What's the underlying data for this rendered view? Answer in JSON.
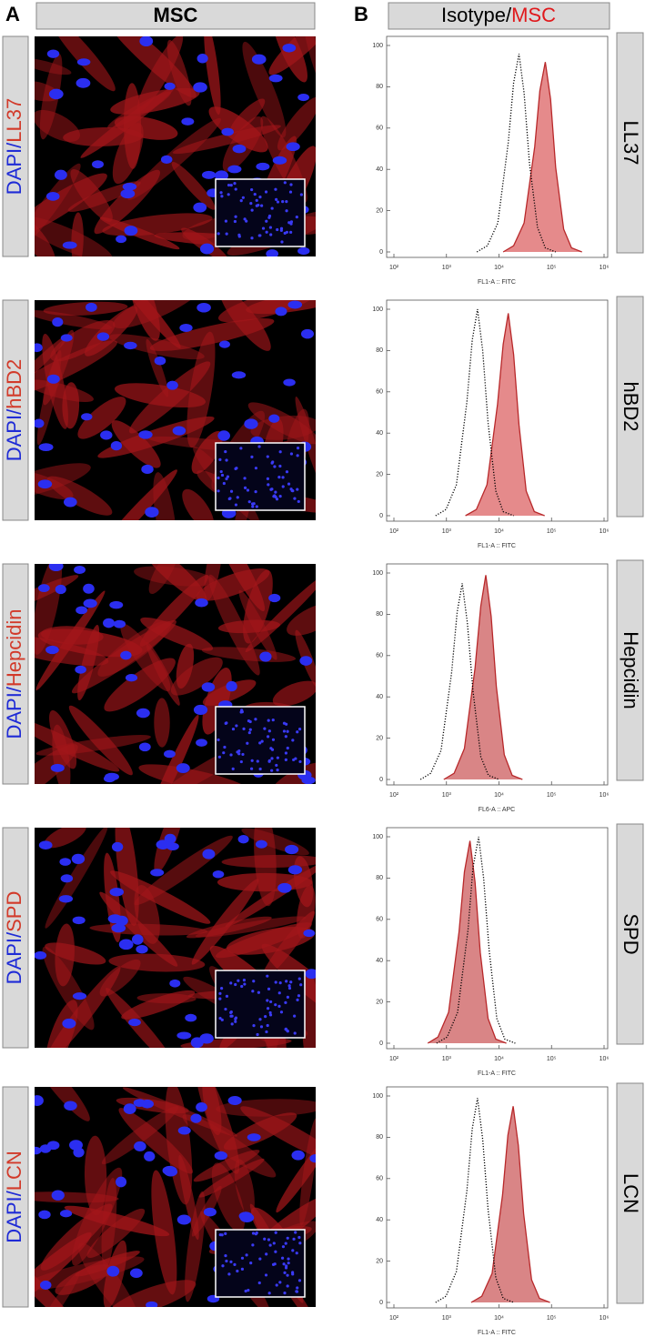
{
  "panel_a": {
    "letter": "A",
    "header": "MSC",
    "rows": [
      {
        "dapi": "DAPI/",
        "marker": "LL37"
      },
      {
        "dapi": "DAPI/",
        "marker": "hBD2"
      },
      {
        "dapi": "DAPI/",
        "marker": "Hepcidin"
      },
      {
        "dapi": "DAPI/",
        "marker": "SPD"
      },
      {
        "dapi": "DAPI/",
        "marker": "LCN"
      }
    ]
  },
  "panel_b": {
    "letter": "B",
    "header": [
      "Isotype/",
      "MSC"
    ]
  },
  "chart_data": [
    {
      "type": "histogram-overlay",
      "title": "LL37",
      "x_label": "FL1-A :: FITC",
      "log_x": true,
      "xlim": [
        100,
        1000000
      ],
      "ylim": [
        0,
        100
      ],
      "xticks": [
        {
          "value": 100,
          "label": "10²"
        },
        {
          "value": 1000,
          "label": "10³"
        },
        {
          "value": 10000,
          "label": "10⁴"
        },
        {
          "value": 100000,
          "label": "10⁵"
        },
        {
          "value": 1000000,
          "label": "10⁶"
        }
      ],
      "yticks": [
        0,
        20,
        40,
        60,
        80,
        100
      ],
      "series": [
        {
          "color": "#b8282a",
          "fill": "#e58a8b",
          "x": [
            12000,
            19000,
            30000,
            48000,
            60000,
            76000,
            96000,
            120000,
            170000,
            240000,
            380000
          ],
          "values": [
            0,
            3,
            14,
            51,
            78,
            92,
            74,
            41,
            11,
            2,
            0
          ]
        },
        {
          "color": "#000000",
          "style": "dotted",
          "x": [
            3800,
            6000,
            9500,
            15000,
            19000,
            24000,
            30000,
            38000,
            54000,
            76000,
            120000
          ],
          "values": [
            0,
            3,
            14,
            53,
            82,
            96,
            77,
            43,
            12,
            2,
            0
          ]
        }
      ]
    },
    {
      "type": "histogram-overlay",
      "title": "hBD2",
      "x_label": "FL1-A :: FITC",
      "log_x": true,
      "xlim": [
        100,
        1000000
      ],
      "ylim": [
        0,
        100
      ],
      "xticks": [
        {
          "value": 100,
          "label": "10²"
        },
        {
          "value": 1000,
          "label": "10³"
        },
        {
          "value": 10000,
          "label": "10⁴"
        },
        {
          "value": 100000,
          "label": "10⁵"
        },
        {
          "value": 1000000,
          "label": "10⁶"
        }
      ],
      "yticks": [
        0,
        20,
        40,
        60,
        80,
        100
      ],
      "series": [
        {
          "color": "#b8282a",
          "fill": "#e58a8b",
          "x": [
            2300,
            3700,
            5900,
            9400,
            12000,
            15000,
            19000,
            24000,
            33000,
            47000,
            74000
          ],
          "values": [
            0,
            3,
            15,
            54,
            83,
            98,
            78,
            44,
            12,
            2,
            0
          ]
        },
        {
          "color": "#000000",
          "style": "dotted",
          "x": [
            620,
            980,
            1550,
            2450,
            3100,
            3900,
            4900,
            6200,
            8700,
            12000,
            19000
          ],
          "values": [
            0,
            3,
            15,
            55,
            85,
            100,
            80,
            45,
            12,
            2,
            0
          ]
        }
      ]
    },
    {
      "type": "histogram-overlay",
      "title": "Hepcidin",
      "x_label": "FL6-A :: APC",
      "log_x": true,
      "xlim": [
        100,
        1000000
      ],
      "ylim": [
        0,
        100
      ],
      "xticks": [
        {
          "value": 100,
          "label": "10²"
        },
        {
          "value": 1000,
          "label": "10³"
        },
        {
          "value": 10000,
          "label": "10⁴"
        },
        {
          "value": 100000,
          "label": "10⁵"
        },
        {
          "value": 1000000,
          "label": "10⁶"
        }
      ],
      "yticks": [
        0,
        20,
        40,
        60,
        80,
        100
      ],
      "series": [
        {
          "color": "#b8282a",
          "fill": "#d98586",
          "x": [
            890,
            1400,
            2200,
            3500,
            4500,
            5600,
            7100,
            8900,
            12600,
            17800,
            28000
          ],
          "values": [
            0,
            3,
            15,
            54,
            84,
            99,
            79,
            45,
            12,
            2,
            0
          ]
        },
        {
          "color": "#000000",
          "style": "dotted",
          "x": [
            320,
            500,
            790,
            1260,
            1600,
            2000,
            2500,
            3200,
            4500,
            6300,
            10000
          ],
          "values": [
            0,
            3,
            14,
            52,
            81,
            95,
            76,
            43,
            11,
            2,
            0
          ]
        }
      ]
    },
    {
      "type": "histogram-overlay",
      "title": "SPD",
      "x_label": "FL1-A :: FITC",
      "log_x": true,
      "xlim": [
        100,
        1000000
      ],
      "ylim": [
        0,
        100
      ],
      "xticks": [
        {
          "value": 100,
          "label": "10²"
        },
        {
          "value": 1000,
          "label": "10³"
        },
        {
          "value": 10000,
          "label": "10⁴"
        },
        {
          "value": 100000,
          "label": "10⁵"
        },
        {
          "value": 1000000,
          "label": "10⁶"
        }
      ],
      "yticks": [
        0,
        20,
        40,
        60,
        80,
        100
      ],
      "series": [
        {
          "color": "#b8282a",
          "fill": "#d98586",
          "x": [
            440,
            690,
            1100,
            1740,
            2200,
            2800,
            3500,
            4400,
            6200,
            8700,
            13800
          ],
          "values": [
            0,
            3,
            15,
            54,
            83,
            98,
            78,
            44,
            12,
            2,
            0
          ]
        },
        {
          "color": "#000000",
          "style": "dotted",
          "x": [
            650,
            1030,
            1630,
            2580,
            3200,
            4100,
            5100,
            6500,
            9100,
            12900,
            20400
          ],
          "values": [
            0,
            3,
            15,
            55,
            85,
            100,
            80,
            45,
            12,
            2,
            0
          ]
        }
      ]
    },
    {
      "type": "histogram-overlay",
      "title": "LCN",
      "x_label": "FL1-A :: FITC",
      "log_x": true,
      "xlim": [
        100,
        1000000
      ],
      "ylim": [
        0,
        100
      ],
      "xticks": [
        {
          "value": 100,
          "label": "10²"
        },
        {
          "value": 1000,
          "label": "10³"
        },
        {
          "value": 10000,
          "label": "10⁴"
        },
        {
          "value": 100000,
          "label": "10⁵"
        },
        {
          "value": 1000000,
          "label": "10⁶"
        }
      ],
      "yticks": [
        0,
        20,
        40,
        60,
        80,
        100
      ],
      "series": [
        {
          "color": "#b8282a",
          "fill": "#d98586",
          "x": [
            2950,
            4700,
            7400,
            11700,
            14800,
            18600,
            23400,
            29500,
            41700,
            58900,
            93300
          ],
          "values": [
            0,
            3,
            14,
            52,
            81,
            95,
            76,
            43,
            11,
            2,
            0
          ]
        },
        {
          "color": "#000000",
          "style": "dotted",
          "x": [
            620,
            980,
            1550,
            2450,
            3100,
            3900,
            4900,
            6200,
            8700,
            12000,
            19000
          ],
          "values": [
            0,
            3,
            15,
            54,
            84,
            99,
            79,
            45,
            12,
            2,
            0
          ]
        }
      ]
    }
  ]
}
